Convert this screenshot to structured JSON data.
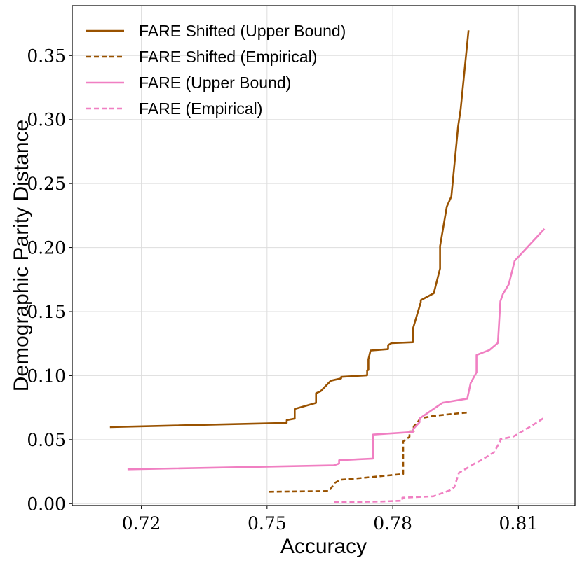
{
  "chart_data": {
    "type": "line",
    "xlabel": "Accuracy",
    "ylabel": "Demographic Parity Distance",
    "xlim": [
      0.7035,
      0.8235
    ],
    "ylim": [
      -0.0015,
      0.389
    ],
    "x_ticks": [
      0.72,
      0.75,
      0.78,
      0.81
    ],
    "x_tick_labels": [
      "0.72",
      "0.75",
      "0.78",
      "0.81"
    ],
    "y_ticks": [
      0.0,
      0.05,
      0.1,
      0.15,
      0.2,
      0.25,
      0.3,
      0.35
    ],
    "y_tick_labels": [
      "0.00",
      "0.05",
      "0.10",
      "0.15",
      "0.20",
      "0.25",
      "0.30",
      "0.35"
    ],
    "grid": true,
    "legend_position": "top-left",
    "series": [
      {
        "name": "FARE Shifted (Upper Bound)",
        "color": "#995200",
        "style": "solid",
        "x": [
          0.7125,
          0.7547,
          0.7547,
          0.7566,
          0.7566,
          0.7617,
          0.7617,
          0.7628,
          0.7652,
          0.7677,
          0.7677,
          0.7739,
          0.7739,
          0.7742,
          0.7742,
          0.7747,
          0.7789,
          0.7789,
          0.7797,
          0.7848,
          0.7848,
          0.7867,
          0.7867,
          0.7898,
          0.7913,
          0.7913,
          0.7929,
          0.794,
          0.7956,
          0.7962,
          0.7981
        ],
        "y": [
          0.0598,
          0.0631,
          0.0652,
          0.0664,
          0.074,
          0.0787,
          0.0862,
          0.0878,
          0.096,
          0.0979,
          0.099,
          0.1003,
          0.1041,
          0.1044,
          0.1127,
          0.1196,
          0.1207,
          0.1238,
          0.1254,
          0.1261,
          0.1365,
          0.1574,
          0.1589,
          0.1643,
          0.1836,
          0.2011,
          0.232,
          0.2399,
          0.2945,
          0.3078,
          0.3697
        ]
      },
      {
        "name": "FARE Shifted (Empirical)",
        "color": "#995200",
        "style": "dashed",
        "x": [
          0.7505,
          0.7648,
          0.7662,
          0.7675,
          0.7732,
          0.7775,
          0.7825,
          0.7825,
          0.784,
          0.784,
          0.785,
          0.785,
          0.7859,
          0.7866,
          0.7895,
          0.7946,
          0.7982
        ],
        "y": [
          0.0093,
          0.0098,
          0.0162,
          0.0186,
          0.0202,
          0.0216,
          0.0231,
          0.0486,
          0.0522,
          0.0564,
          0.0564,
          0.0603,
          0.0634,
          0.0666,
          0.0684,
          0.0702,
          0.0713
        ]
      },
      {
        "name": "FARE (Upper Bound)",
        "color": "#f07fc2",
        "style": "solid",
        "x": [
          0.7167,
          0.7659,
          0.7672,
          0.7672,
          0.7753,
          0.7753,
          0.7848,
          0.7848,
          0.7864,
          0.7864,
          0.7919,
          0.7978,
          0.7986,
          0.8,
          0.8,
          0.8031,
          0.8051,
          0.8057,
          0.8063,
          0.8077,
          0.8091,
          0.8162
        ],
        "y": [
          0.0268,
          0.0299,
          0.0313,
          0.0339,
          0.0352,
          0.0539,
          0.056,
          0.058,
          0.0636,
          0.0665,
          0.0788,
          0.082,
          0.0942,
          0.1026,
          0.1161,
          0.12,
          0.1256,
          0.1581,
          0.1637,
          0.1714,
          0.1896,
          0.2146
        ]
      },
      {
        "name": "FARE (Empirical)",
        "color": "#f07fc2",
        "style": "dashed",
        "x": [
          0.766,
          0.777,
          0.7823,
          0.7823,
          0.7897,
          0.7936,
          0.7947,
          0.7958,
          0.7996,
          0.801,
          0.803,
          0.8042,
          0.8057,
          0.8057,
          0.8078,
          0.8088,
          0.8129,
          0.8162
        ],
        "y": [
          0.0011,
          0.0016,
          0.0023,
          0.0046,
          0.0057,
          0.0103,
          0.0129,
          0.024,
          0.0314,
          0.0337,
          0.0377,
          0.0403,
          0.0489,
          0.0503,
          0.0517,
          0.0524,
          0.0603,
          0.0672
        ]
      }
    ]
  }
}
